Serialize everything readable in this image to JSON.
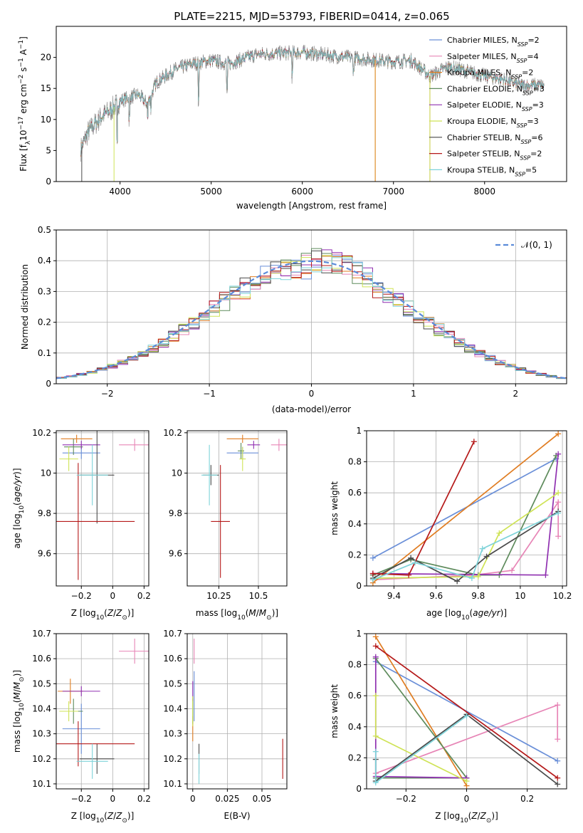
{
  "title": "PLATE=2215, MJD=53793, FIBERID=0414, z=0.065",
  "colors": {
    "Chabrier MILES": "#6a8fd8",
    "Salpeter MILES": "#e785b6",
    "Kroupa MILES": "#e07d22",
    "Chabrier ELODIE": "#5e8b5c",
    "Salpeter ELODIE": "#8f2fb0",
    "Kroupa ELODIE": "#cfe356",
    "Chabrier STELIB": "#4a4a4a",
    "Salpeter STELIB": "#b51919",
    "Kroupa STELIB": "#7ed3d9"
  },
  "legend_spectrum": [
    {
      "name": "Chabrier MILES",
      "label": "Chabrier MILES, N",
      "sub": "SSP",
      "post": "=2"
    },
    {
      "name": "Salpeter MILES",
      "label": "Salpeter MILES, N",
      "sub": "SSP",
      "post": "=4"
    },
    {
      "name": "Kroupa MILES",
      "label": "Kroupa MILES, N",
      "sub": "SSP",
      "post": "=2"
    },
    {
      "name": "Chabrier ELODIE",
      "label": "Chabrier ELODIE, N",
      "sub": "SSP",
      "post": "=3"
    },
    {
      "name": "Salpeter ELODIE",
      "label": "Salpeter ELODIE, N",
      "sub": "SSP",
      "post": "=3"
    },
    {
      "name": "Kroupa ELODIE",
      "label": "Kroupa ELODIE, N",
      "sub": "SSP",
      "post": "=3"
    },
    {
      "name": "Chabrier STELIB",
      "label": "Chabrier STELIB, N",
      "sub": "SSP",
      "post": "=6"
    },
    {
      "name": "Salpeter STELIB",
      "label": "Salpeter STELIB, N",
      "sub": "SSP",
      "post": "=2"
    },
    {
      "name": "Kroupa STELIB",
      "label": "Kroupa STELIB, N",
      "sub": "SSP",
      "post": "=5"
    }
  ],
  "legend_hist": "𝒩(0, 1)",
  "chart_data": [
    {
      "id": "spectrum",
      "type": "line",
      "xlabel": "wavelength [Angstrom, rest frame]",
      "ylabel": "Flux [f_λ 10^-17 erg cm^-2 s^-1 A^-1]",
      "xlim": [
        3300,
        8900
      ],
      "ylim": [
        0,
        25
      ],
      "xticks": [
        4000,
        5000,
        6000,
        7000,
        8000
      ],
      "yticks": [
        0,
        5,
        10,
        15,
        20
      ],
      "continuum": [
        [
          3570,
          5.2
        ],
        [
          3650,
          8
        ],
        [
          3800,
          10.5
        ],
        [
          3900,
          11.5
        ],
        [
          4000,
          13
        ],
        [
          4200,
          14
        ],
        [
          4300,
          12.5
        ],
        [
          4400,
          16
        ],
        [
          4600,
          18
        ],
        [
          4800,
          19
        ],
        [
          5000,
          19.5
        ],
        [
          5200,
          19
        ],
        [
          5500,
          20.5
        ],
        [
          6000,
          20.8
        ],
        [
          6500,
          20
        ],
        [
          7000,
          19.3
        ],
        [
          7200,
          19.5
        ],
        [
          7400,
          17
        ],
        [
          7600,
          18.5
        ],
        [
          7800,
          17.8
        ],
        [
          8000,
          17
        ],
        [
          8200,
          16.5
        ],
        [
          8400,
          15.5
        ],
        [
          8650,
          15.5
        ]
      ],
      "absorption": [
        [
          3580,
          0
        ],
        [
          3934,
          0
        ],
        [
          3968,
          5
        ],
        [
          4102,
          10
        ],
        [
          4304,
          10
        ],
        [
          4340,
          11.5
        ],
        [
          4861,
          13
        ],
        [
          5175,
          14.5
        ],
        [
          5890,
          17
        ],
        [
          6563,
          17.5
        ],
        [
          6800,
          0
        ],
        [
          7400,
          0
        ]
      ],
      "grid": false
    },
    {
      "id": "residuals",
      "type": "histogram",
      "xlabel": "(data-model)/error",
      "ylabel": "Normed distribution",
      "xlim": [
        -2.5,
        2.5
      ],
      "ylim": [
        0,
        0.5
      ],
      "xticks": [
        -2,
        -1,
        0,
        1,
        2
      ],
      "yticks": [
        0,
        0.1,
        0.2,
        0.3,
        0.4,
        0.5
      ],
      "bin_width": 0.1,
      "reference_curve": "N(0,1)",
      "grid": true
    },
    {
      "id": "age-vs-Z",
      "type": "errorbar",
      "xlabel": "Z [log10(Z/Z⊙)]",
      "ylabel": "age  [log10(age/yr)]",
      "xlim": [
        -0.36,
        0.23
      ],
      "ylim": [
        9.44,
        10.21
      ],
      "xticks": [
        -0.2,
        0.0,
        0.2
      ],
      "yticks": [
        9.6,
        9.8,
        10.0,
        10.2
      ],
      "series": [
        {
          "name": "Chabrier MILES",
          "x": -0.2,
          "xerr": 0.12,
          "y": 10.1,
          "yerr": 0.03
        },
        {
          "name": "Salpeter MILES",
          "x": 0.14,
          "xerr": 0.1,
          "y": 10.14,
          "yerr": 0.03
        },
        {
          "name": "Kroupa MILES",
          "x": -0.23,
          "xerr": 0.1,
          "y": 10.17,
          "yerr": 0.02
        },
        {
          "name": "Chabrier ELODIE",
          "x": -0.25,
          "xerr": 0.06,
          "y": 10.13,
          "yerr": 0.04
        },
        {
          "name": "Salpeter ELODIE",
          "x": -0.2,
          "xerr": 0.12,
          "y": 10.14,
          "yerr": 0.02
        },
        {
          "name": "Kroupa ELODIE",
          "x": -0.28,
          "xerr": 0.06,
          "y": 10.07,
          "yerr": 0.06
        },
        {
          "name": "Chabrier STELIB",
          "x": -0.1,
          "xerr": 0.11,
          "y": 9.99,
          "yerr": 0.24
        },
        {
          "name": "Salpeter STELIB",
          "x": -0.22,
          "xerr": 0.36,
          "y": 9.76,
          "yerr": 0.29
        },
        {
          "name": "Kroupa STELIB",
          "x": -0.13,
          "xerr": 0.1,
          "y": 9.99,
          "yerr": 0.15
        }
      ],
      "grid": true
    },
    {
      "id": "age-vs-mass",
      "type": "errorbar",
      "xlabel": "mass [log10(M/M⊙)]",
      "ylabel": "",
      "xlim": [
        10.05,
        10.68
      ],
      "ylim": [
        9.44,
        10.21
      ],
      "xticks": [
        10.25,
        10.5
      ],
      "yticks": [
        9.6,
        9.8,
        10.0,
        10.2
      ],
      "series": [
        {
          "name": "Chabrier MILES",
          "x": 10.4,
          "xerr": 0.1,
          "y": 10.1,
          "yerr": 0.03
        },
        {
          "name": "Salpeter MILES",
          "x": 10.63,
          "xerr": 0.05,
          "y": 10.14,
          "yerr": 0.03
        },
        {
          "name": "Kroupa MILES",
          "x": 10.4,
          "xerr": 0.1,
          "y": 10.17,
          "yerr": 0.02
        },
        {
          "name": "Chabrier ELODIE",
          "x": 10.39,
          "xerr": 0.02,
          "y": 10.11,
          "yerr": 0.04
        },
        {
          "name": "Salpeter ELODIE",
          "x": 10.47,
          "xerr": 0.04,
          "y": 10.14,
          "yerr": 0.02
        },
        {
          "name": "Kroupa ELODIE",
          "x": 10.4,
          "xerr": 0.02,
          "y": 10.07,
          "yerr": 0.06
        },
        {
          "name": "Chabrier STELIB",
          "x": 10.2,
          "xerr": 0.05,
          "y": 9.99,
          "yerr": 0.05
        },
        {
          "name": "Salpeter STELIB",
          "x": 10.26,
          "xerr": 0.06,
          "y": 9.76,
          "yerr": 0.28
        },
        {
          "name": "Kroupa STELIB",
          "x": 10.19,
          "xerr": 0.05,
          "y": 9.99,
          "yerr": 0.15
        }
      ],
      "grid": true
    },
    {
      "id": "weight-vs-age",
      "type": "line",
      "xlabel": "age  [log10(age/yr)]",
      "ylabel": "mass weight",
      "xlim": [
        9.27,
        10.22
      ],
      "ylim": [
        0,
        1
      ],
      "xticks": [
        9.4,
        9.6,
        9.8,
        10.0,
        10.2
      ],
      "yticks": [
        0,
        0.2,
        0.4,
        0.6,
        0.8,
        1.0
      ],
      "series": [
        {
          "name": "Chabrier MILES",
          "points": [
            [
              9.3,
              0.18
            ],
            [
              10.17,
              0.82
            ]
          ]
        },
        {
          "name": "Salpeter MILES",
          "points": [
            [
              9.3,
              0.04
            ],
            [
              9.78,
              0.07
            ],
            [
              9.96,
              0.1
            ],
            [
              10.18,
              0.54
            ],
            [
              10.18,
              0.32
            ]
          ]
        },
        {
          "name": "Kroupa MILES",
          "points": [
            [
              9.3,
              0.02
            ],
            [
              10.18,
              0.98
            ]
          ]
        },
        {
          "name": "Chabrier ELODIE",
          "points": [
            [
              9.3,
              0.07
            ],
            [
              9.48,
              0.17
            ],
            [
              9.8,
              0.07
            ],
            [
              9.9,
              0.07
            ],
            [
              10.17,
              0.84
            ]
          ]
        },
        {
          "name": "Salpeter ELODIE",
          "points": [
            [
              9.3,
              0.08
            ],
            [
              10.12,
              0.07
            ],
            [
              10.18,
              0.85
            ]
          ]
        },
        {
          "name": "Kroupa ELODIE",
          "points": [
            [
              9.3,
              0.05
            ],
            [
              9.8,
              0.06
            ],
            [
              9.9,
              0.34
            ],
            [
              10.18,
              0.6
            ]
          ]
        },
        {
          "name": "Chabrier STELIB",
          "points": [
            [
              9.3,
              0.05
            ],
            [
              9.48,
              0.18
            ],
            [
              9.7,
              0.03
            ],
            [
              9.84,
              0.19
            ],
            [
              10.18,
              0.48
            ]
          ]
        },
        {
          "name": "Salpeter STELIB",
          "points": [
            [
              9.3,
              0.08
            ],
            [
              9.47,
              0.07
            ],
            [
              9.78,
              0.93
            ]
          ]
        },
        {
          "name": "Kroupa STELIB",
          "points": [
            [
              9.3,
              0.04
            ],
            [
              9.5,
              0.15
            ],
            [
              9.77,
              0.05
            ],
            [
              9.82,
              0.24
            ],
            [
              10.18,
              0.47
            ]
          ]
        }
      ],
      "grid": true
    },
    {
      "id": "mass-vs-Z",
      "type": "errorbar",
      "xlabel": "Z [log10(Z/Z⊙)]",
      "ylabel": "mass [log10(M/M⊙)]",
      "xlim": [
        -0.36,
        0.23
      ],
      "ylim": [
        10.08,
        10.7
      ],
      "xticks": [
        -0.2,
        0.0,
        0.2
      ],
      "yticks": [
        10.1,
        10.2,
        10.3,
        10.4,
        10.5,
        10.6,
        10.7
      ],
      "series": [
        {
          "name": "Chabrier MILES",
          "x": -0.2,
          "xerr": 0.12,
          "y": 10.32,
          "yerr": 0.1
        },
        {
          "name": "Salpeter MILES",
          "x": 0.14,
          "xerr": 0.1,
          "y": 10.63,
          "yerr": 0.05
        },
        {
          "name": "Kroupa MILES",
          "x": -0.27,
          "xerr": 0.08,
          "y": 10.47,
          "yerr": 0.05
        },
        {
          "name": "Chabrier ELODIE",
          "x": -0.25,
          "xerr": 0.06,
          "y": 10.39,
          "yerr": 0.05
        },
        {
          "name": "Salpeter ELODIE",
          "x": -0.2,
          "xerr": 0.12,
          "y": 10.47,
          "yerr": 0.02
        },
        {
          "name": "Kroupa ELODIE",
          "x": -0.28,
          "xerr": 0.06,
          "y": 10.39,
          "yerr": 0.04
        },
        {
          "name": "Chabrier STELIB",
          "x": -0.1,
          "xerr": 0.11,
          "y": 10.2,
          "yerr": 0.06
        },
        {
          "name": "Salpeter STELIB",
          "x": -0.22,
          "xerr": 0.36,
          "y": 10.26,
          "yerr": 0.09
        },
        {
          "name": "Kroupa STELIB",
          "x": -0.13,
          "xerr": 0.1,
          "y": 10.19,
          "yerr": 0.07
        }
      ],
      "grid": true
    },
    {
      "id": "mass-vs-ebv",
      "type": "errorbar",
      "xlabel": "E(B-V)",
      "ylabel": "",
      "xlim": [
        -0.004,
        0.068
      ],
      "ylim": [
        10.08,
        10.7
      ],
      "xticks": [
        0.0,
        0.025,
        0.05
      ],
      "yticks": [
        10.1,
        10.2,
        10.3,
        10.4,
        10.5,
        10.6,
        10.7
      ],
      "series": [
        {
          "name": "Chabrier MILES",
          "x": 0.001,
          "xerr": 0,
          "y": 10.45,
          "yerr": 0.1
        },
        {
          "name": "Salpeter MILES",
          "x": 0.001,
          "xerr": 0,
          "y": 10.63,
          "yerr": 0.05
        },
        {
          "name": "Kroupa MILES",
          "x": 0.0,
          "xerr": 0,
          "y": 10.32,
          "yerr": 0.05
        },
        {
          "name": "Chabrier ELODIE",
          "x": 0.0,
          "xerr": 0,
          "y": 10.39,
          "yerr": 0.05
        },
        {
          "name": "Salpeter ELODIE",
          "x": 0.0,
          "xerr": 0,
          "y": 10.47,
          "yerr": 0.04
        },
        {
          "name": "Kroupa ELODIE",
          "x": 0.0,
          "xerr": 0,
          "y": 10.39,
          "yerr": 0.06
        },
        {
          "name": "Chabrier STELIB",
          "x": 0.0045,
          "xerr": 0,
          "y": 10.2,
          "yerr": 0.06
        },
        {
          "name": "Salpeter STELIB",
          "x": 0.065,
          "xerr": 0,
          "y": 10.2,
          "yerr": 0.08
        },
        {
          "name": "Kroupa STELIB",
          "x": 0.0045,
          "xerr": 0,
          "y": 10.16,
          "yerr": 0.06
        }
      ],
      "grid": true
    },
    {
      "id": "weight-vs-Z",
      "type": "line",
      "xlabel": "Z [log10(Z/Z⊙)]",
      "ylabel": "mass weight",
      "xlim": [
        -0.33,
        0.33
      ],
      "ylim": [
        0,
        1
      ],
      "xticks": [
        -0.2,
        0.0,
        0.2
      ],
      "yticks": [
        0,
        0.2,
        0.4,
        0.6,
        0.8,
        1.0
      ],
      "series": [
        {
          "name": "Chabrier MILES",
          "points": [
            [
              -0.3,
              0.82
            ],
            [
              0.3,
              0.18
            ]
          ]
        },
        {
          "name": "Salpeter MILES",
          "points": [
            [
              -0.3,
              0.1
            ],
            [
              0.3,
              0.54
            ],
            [
              0.3,
              0.32
            ]
          ]
        },
        {
          "name": "Kroupa MILES",
          "points": [
            [
              -0.3,
              0.98
            ],
            [
              0.0,
              0.02
            ]
          ]
        },
        {
          "name": "Chabrier ELODIE",
          "points": [
            [
              -0.3,
              0.84
            ],
            [
              0.0,
              0.07
            ],
            [
              -0.3,
              0.07
            ]
          ]
        },
        {
          "name": "Salpeter ELODIE",
          "points": [
            [
              -0.3,
              0.85
            ],
            [
              -0.3,
              0.08
            ],
            [
              0.0,
              0.07
            ]
          ]
        },
        {
          "name": "Kroupa ELODIE",
          "points": [
            [
              -0.3,
              0.6
            ],
            [
              -0.3,
              0.34
            ],
            [
              0.0,
              0.05
            ]
          ]
        },
        {
          "name": "Chabrier STELIB",
          "points": [
            [
              -0.3,
              0.19
            ],
            [
              -0.3,
              0.05
            ],
            [
              0.0,
              0.48
            ],
            [
              0.3,
              0.03
            ]
          ]
        },
        {
          "name": "Salpeter STELIB",
          "points": [
            [
              -0.3,
              0.92
            ],
            [
              0.3,
              0.07
            ]
          ]
        },
        {
          "name": "Kroupa STELIB",
          "points": [
            [
              -0.3,
              0.24
            ],
            [
              -0.3,
              0.04
            ],
            [
              0.0,
              0.47
            ]
          ]
        }
      ],
      "grid": true
    }
  ]
}
